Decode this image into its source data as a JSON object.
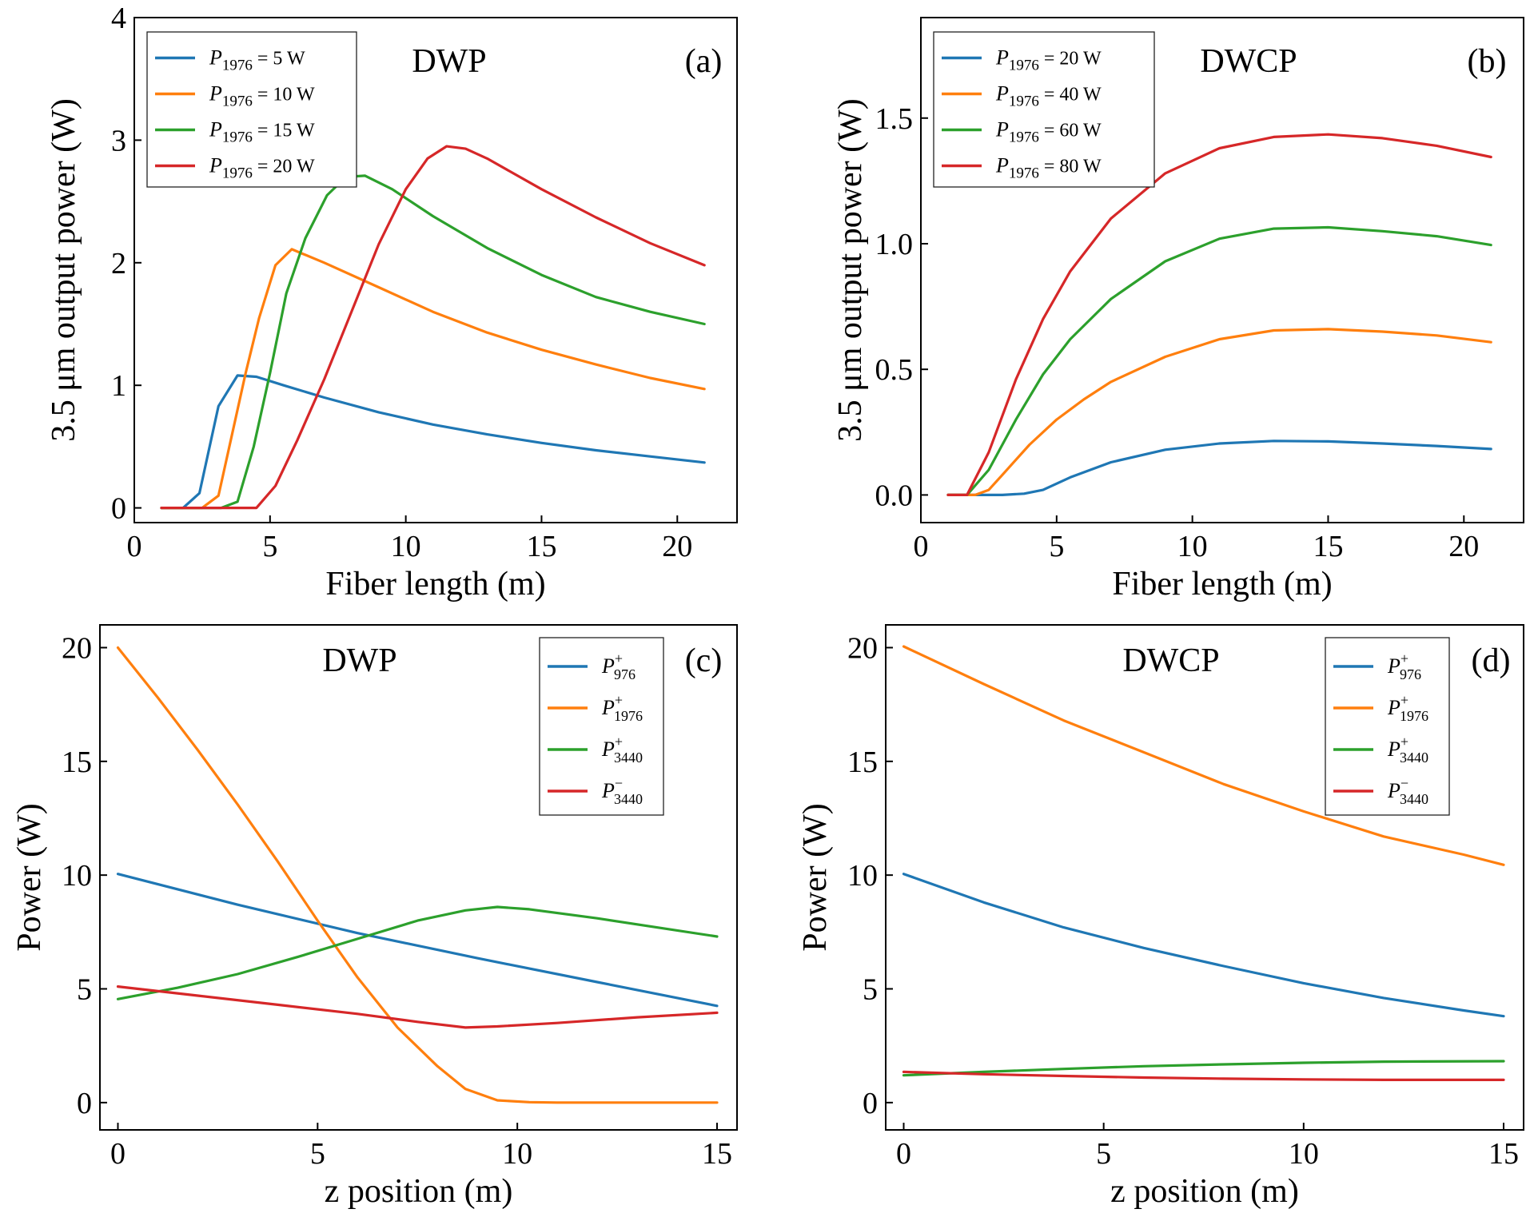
{
  "colors": {
    "blue": "#1f77b4",
    "orange": "#ff7f0e",
    "green": "#2ca02c",
    "red": "#d62728"
  },
  "chart_data": [
    {
      "id": "a",
      "type": "line",
      "title": "DWP",
      "tag": "(a)",
      "xlabel": "Fiber length (m)",
      "ylabel": "3.5 μm output power (W)",
      "xlim": [
        0,
        22.2
      ],
      "ylim": [
        -0.12,
        4.0
      ],
      "xticks": [
        0,
        5,
        10,
        15,
        20
      ],
      "xtick_labels": [
        "0",
        "5",
        "10",
        "15",
        "20"
      ],
      "yticks": [
        0,
        1,
        2,
        3,
        4
      ],
      "ytick_labels": [
        "0",
        "1",
        "2",
        "3",
        "4"
      ],
      "legend_position": "top-left",
      "series": [
        {
          "name": "P1976 = 5 W",
          "sym": "P",
          "sub": "1976",
          "sup": "",
          "suffix": " = 5 W",
          "color": "#1f77b4",
          "x": [
            1.0,
            1.8,
            2.4,
            3.1,
            3.8,
            4.5,
            5.5,
            7,
            9,
            11,
            13,
            15,
            17,
            19,
            21
          ],
          "y": [
            0,
            0,
            0.12,
            0.83,
            1.08,
            1.07,
            1.0,
            0.9,
            0.78,
            0.68,
            0.6,
            0.53,
            0.47,
            0.42,
            0.37
          ]
        },
        {
          "name": "P1976 = 10 W",
          "sym": "P",
          "sub": "1976",
          "sup": "",
          "suffix": " = 10 W",
          "color": "#ff7f0e",
          "x": [
            1.0,
            2.5,
            3.1,
            3.6,
            4.1,
            4.6,
            5.2,
            5.8,
            7,
            9,
            11,
            13,
            15,
            17,
            19,
            21
          ],
          "y": [
            0,
            0,
            0.1,
            0.6,
            1.1,
            1.55,
            1.98,
            2.11,
            2.0,
            1.8,
            1.6,
            1.43,
            1.29,
            1.17,
            1.06,
            0.97
          ]
        },
        {
          "name": "P1976 = 15 W",
          "sym": "P",
          "sub": "1976",
          "sup": "",
          "suffix": " = 15 W",
          "color": "#2ca02c",
          "x": [
            1.0,
            3.2,
            3.8,
            4.4,
            5.0,
            5.6,
            6.3,
            7.1,
            7.8,
            8.5,
            9.5,
            11,
            13,
            15,
            17,
            19,
            21
          ],
          "y": [
            0,
            0,
            0.05,
            0.5,
            1.1,
            1.75,
            2.2,
            2.55,
            2.7,
            2.71,
            2.6,
            2.38,
            2.12,
            1.9,
            1.72,
            1.6,
            1.5
          ]
        },
        {
          "name": "P1976 = 20 W",
          "sym": "P",
          "sub": "1976",
          "sup": "",
          "suffix": " = 20 W",
          "color": "#d62728",
          "x": [
            1.0,
            4.5,
            5.2,
            6.0,
            7.0,
            8.0,
            9.0,
            10.0,
            10.8,
            11.5,
            12.2,
            13,
            15,
            17,
            19,
            21
          ],
          "y": [
            0,
            0,
            0.18,
            0.55,
            1.05,
            1.6,
            2.15,
            2.6,
            2.85,
            2.95,
            2.93,
            2.85,
            2.6,
            2.37,
            2.16,
            1.98
          ]
        }
      ]
    },
    {
      "id": "b",
      "type": "line",
      "title": "DWCP",
      "tag": "(b)",
      "xlabel": "Fiber length (m)",
      "ylabel": "3.5 μm output power (W)",
      "xlim": [
        0,
        22.2
      ],
      "ylim": [
        -0.11,
        1.9
      ],
      "xticks": [
        0,
        5,
        10,
        15,
        20
      ],
      "xtick_labels": [
        "0",
        "5",
        "10",
        "15",
        "20"
      ],
      "yticks": [
        0.0,
        0.5,
        1.0,
        1.5
      ],
      "ytick_labels": [
        "0.0",
        "0.5",
        "1.0",
        "1.5"
      ],
      "legend_position": "top-left",
      "series": [
        {
          "name": "P1976 = 20 W",
          "sym": "P",
          "sub": "1976",
          "sup": "",
          "suffix": " = 20 W",
          "color": "#1f77b4",
          "x": [
            1.0,
            2.0,
            3.0,
            3.8,
            4.5,
            5.5,
            7,
            9,
            11,
            13,
            15,
            17,
            19,
            21
          ],
          "y": [
            0,
            0,
            0,
            0.005,
            0.02,
            0.07,
            0.13,
            0.18,
            0.205,
            0.215,
            0.213,
            0.205,
            0.195,
            0.183
          ]
        },
        {
          "name": "P1976 = 40 W",
          "sym": "P",
          "sub": "1976",
          "sup": "",
          "suffix": " = 40 W",
          "color": "#ff7f0e",
          "x": [
            1.0,
            2.0,
            2.5,
            3.0,
            4.0,
            5.0,
            6.0,
            7,
            9,
            11,
            13,
            15,
            17,
            19,
            21
          ],
          "y": [
            0,
            0,
            0.02,
            0.08,
            0.2,
            0.3,
            0.38,
            0.45,
            0.55,
            0.62,
            0.655,
            0.66,
            0.65,
            0.635,
            0.608
          ]
        },
        {
          "name": "P1976 = 60 W",
          "sym": "P",
          "sub": "1976",
          "sup": "",
          "suffix": " = 60 W",
          "color": "#2ca02c",
          "x": [
            1.0,
            1.7,
            2.5,
            3.5,
            4.5,
            5.5,
            7,
            9,
            11,
            13,
            15,
            17,
            19,
            21
          ],
          "y": [
            0,
            0,
            0.1,
            0.3,
            0.48,
            0.62,
            0.78,
            0.93,
            1.02,
            1.06,
            1.065,
            1.05,
            1.03,
            0.995
          ]
        },
        {
          "name": "P1976 = 80 W",
          "sym": "P",
          "sub": "1976",
          "sup": "",
          "suffix": " = 80 W",
          "color": "#d62728",
          "x": [
            1.0,
            1.7,
            2.5,
            3.5,
            4.5,
            5.5,
            7,
            9,
            11,
            13,
            15,
            17,
            19,
            21
          ],
          "y": [
            0,
            0,
            0.17,
            0.46,
            0.7,
            0.89,
            1.1,
            1.28,
            1.38,
            1.425,
            1.435,
            1.42,
            1.39,
            1.345
          ]
        }
      ]
    },
    {
      "id": "c",
      "type": "line",
      "title": "DWP",
      "tag": "(c)",
      "xlabel": "z position (m)",
      "ylabel": "Power (W)",
      "xlim": [
        -0.45,
        15.5
      ],
      "ylim": [
        -1.2,
        21.0
      ],
      "xticks": [
        0,
        5,
        10,
        15
      ],
      "xtick_labels": [
        "0",
        "5",
        "10",
        "15"
      ],
      "yticks": [
        0,
        5,
        10,
        15,
        20
      ],
      "ytick_labels": [
        "0",
        "5",
        "10",
        "15",
        "20"
      ],
      "legend_position": "top-right",
      "series": [
        {
          "name": "P+976",
          "sym": "P",
          "sub": "976",
          "sup": "+",
          "suffix": "",
          "color": "#1f77b4",
          "x": [
            0,
            3,
            6,
            9,
            12,
            15
          ],
          "y": [
            10.05,
            8.7,
            7.45,
            6.35,
            5.3,
            4.25
          ]
        },
        {
          "name": "P+1976",
          "sym": "P",
          "sub": "1976",
          "sup": "+",
          "suffix": "",
          "color": "#ff7f0e",
          "x": [
            0,
            1,
            2,
            3,
            4,
            5,
            6,
            7,
            8,
            8.7,
            9.5,
            10.3,
            11,
            15
          ],
          "y": [
            20.0,
            17.8,
            15.5,
            13.1,
            10.6,
            8.0,
            5.5,
            3.3,
            1.6,
            0.6,
            0.1,
            0.02,
            0,
            0
          ]
        },
        {
          "name": "P+3440",
          "sym": "P",
          "sub": "3440",
          "sup": "+",
          "suffix": "",
          "color": "#2ca02c",
          "x": [
            0,
            1.5,
            3,
            4.5,
            6,
            7.5,
            8.7,
            9.5,
            10.3,
            12,
            15
          ],
          "y": [
            4.55,
            5.05,
            5.65,
            6.4,
            7.2,
            8.0,
            8.45,
            8.6,
            8.5,
            8.1,
            7.3
          ]
        },
        {
          "name": "P−3440",
          "sym": "P",
          "sub": "3440",
          "sup": "−",
          "suffix": "",
          "color": "#d62728",
          "x": [
            0,
            2,
            4,
            6,
            7.5,
            8.7,
            9.5,
            11,
            13,
            15
          ],
          "y": [
            5.1,
            4.7,
            4.3,
            3.9,
            3.55,
            3.3,
            3.35,
            3.5,
            3.75,
            3.95
          ]
        }
      ]
    },
    {
      "id": "d",
      "type": "line",
      "title": "DWCP",
      "tag": "(d)",
      "xlabel": "z position (m)",
      "ylabel": "Power (W)",
      "xlim": [
        -0.45,
        15.5
      ],
      "ylim": [
        -1.2,
        21.0
      ],
      "xticks": [
        0,
        5,
        10,
        15
      ],
      "xtick_labels": [
        "0",
        "5",
        "10",
        "15"
      ],
      "yticks": [
        0,
        5,
        10,
        15,
        20
      ],
      "ytick_labels": [
        "0",
        "5",
        "10",
        "15",
        "20"
      ],
      "legend_position": "top-right",
      "series": [
        {
          "name": "P+976",
          "sym": "P",
          "sub": "976",
          "sup": "+",
          "suffix": "",
          "color": "#1f77b4",
          "x": [
            0,
            2,
            4,
            6,
            8,
            10,
            12,
            14,
            15
          ],
          "y": [
            10.05,
            8.8,
            7.7,
            6.8,
            6.0,
            5.25,
            4.6,
            4.05,
            3.8
          ]
        },
        {
          "name": "P+1976",
          "sym": "P",
          "sub": "1976",
          "sup": "+",
          "suffix": "",
          "color": "#ff7f0e",
          "x": [
            0,
            2,
            4,
            6,
            8,
            10,
            12,
            14,
            15
          ],
          "y": [
            20.05,
            18.4,
            16.8,
            15.4,
            14.0,
            12.8,
            11.7,
            10.9,
            10.45
          ]
        },
        {
          "name": "P+3440",
          "sym": "P",
          "sub": "3440",
          "sup": "+",
          "suffix": "",
          "color": "#2ca02c",
          "x": [
            0,
            2,
            4,
            6,
            8,
            10,
            12,
            15
          ],
          "y": [
            1.2,
            1.35,
            1.48,
            1.6,
            1.68,
            1.75,
            1.8,
            1.82
          ]
        },
        {
          "name": "P−3440",
          "sym": "P",
          "sub": "3440",
          "sup": "−",
          "suffix": "",
          "color": "#d62728",
          "x": [
            0,
            2,
            4,
            6,
            8,
            10,
            12,
            15
          ],
          "y": [
            1.35,
            1.25,
            1.17,
            1.1,
            1.05,
            1.02,
            1.0,
            1.0
          ]
        }
      ]
    }
  ]
}
